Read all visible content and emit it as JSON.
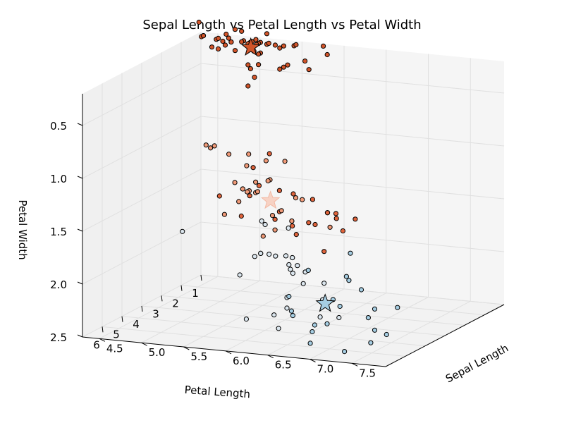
{
  "chart_data": {
    "type": "scatter-3d",
    "title": "Sepal Length  vs  Petal Length  vs  Petal Width",
    "axes": {
      "x": {
        "label": "Sepal Length",
        "ticks": [
          "4.5",
          "5.0",
          "5.5",
          "6.0",
          "6.5",
          "7.0",
          "7.5"
        ]
      },
      "y": {
        "label": "Petal Length",
        "ticks": [
          "6",
          "5",
          "4",
          "3",
          "2",
          "1"
        ]
      },
      "z": {
        "label": "Petal Width",
        "ticks": [
          "0.5",
          "1.0",
          "1.5",
          "2.0",
          "2.5"
        ]
      }
    },
    "colors": {
      "blue_cluster": "#a6cee3",
      "light_cluster": "#dbe6ee",
      "salmon_cluster": "#f09a78",
      "red_cluster": "#e0643c",
      "dark_cluster": "#d2552a",
      "marker_edge": "#000000",
      "pane": "#f2f2f2",
      "grid": "#e0e0e0"
    },
    "series": [
      {
        "name": "",
        "cluster": "dark_cluster",
        "points": [
          [
            5.1,
            1.4,
            0.2
          ],
          [
            4.9,
            1.4,
            0.2
          ],
          [
            4.7,
            1.3,
            0.2
          ],
          [
            4.6,
            1.5,
            0.2
          ],
          [
            5.0,
            1.4,
            0.2
          ],
          [
            5.4,
            1.7,
            0.4
          ],
          [
            4.6,
            1.4,
            0.3
          ],
          [
            5.0,
            1.5,
            0.2
          ],
          [
            4.4,
            1.4,
            0.2
          ],
          [
            4.9,
            1.5,
            0.1
          ],
          [
            5.4,
            1.5,
            0.2
          ],
          [
            4.8,
            1.6,
            0.2
          ],
          [
            4.8,
            1.4,
            0.1
          ],
          [
            4.3,
            1.1,
            0.1
          ],
          [
            5.8,
            1.2,
            0.2
          ],
          [
            5.7,
            1.5,
            0.4
          ],
          [
            5.4,
            1.3,
            0.4
          ],
          [
            5.1,
            1.4,
            0.3
          ],
          [
            5.7,
            1.7,
            0.3
          ],
          [
            5.1,
            1.5,
            0.3
          ],
          [
            5.4,
            1.7,
            0.2
          ],
          [
            5.1,
            1.5,
            0.4
          ],
          [
            4.6,
            1.0,
            0.2
          ],
          [
            5.1,
            1.7,
            0.5
          ],
          [
            4.8,
            1.9,
            0.2
          ],
          [
            5.0,
            1.6,
            0.2
          ],
          [
            5.0,
            1.6,
            0.4
          ],
          [
            5.2,
            1.5,
            0.2
          ],
          [
            5.2,
            1.4,
            0.2
          ],
          [
            4.7,
            1.6,
            0.2
          ],
          [
            4.8,
            1.6,
            0.2
          ],
          [
            5.4,
            1.5,
            0.4
          ],
          [
            5.2,
            1.5,
            0.1
          ],
          [
            5.5,
            1.4,
            0.2
          ],
          [
            4.9,
            1.5,
            0.2
          ],
          [
            5.0,
            1.2,
            0.2
          ],
          [
            5.5,
            1.3,
            0.2
          ],
          [
            4.4,
            1.3,
            0.2
          ],
          [
            5.1,
            1.5,
            0.2
          ],
          [
            5.0,
            1.3,
            0.3
          ],
          [
            4.5,
            1.3,
            0.3
          ],
          [
            4.4,
            1.3,
            0.2
          ],
          [
            5.0,
            1.6,
            0.6
          ],
          [
            5.1,
            1.9,
            0.4
          ],
          [
            4.8,
            1.4,
            0.3
          ],
          [
            5.1,
            1.6,
            0.2
          ],
          [
            4.6,
            1.4,
            0.2
          ],
          [
            5.3,
            1.5,
            0.2
          ],
          [
            5.0,
            1.4,
            0.2
          ],
          [
            5.8,
            1.0,
            0.3
          ]
        ]
      },
      {
        "name": "",
        "cluster": "red_cluster",
        "points": [
          [
            7.0,
            4.7,
            1.4
          ],
          [
            6.4,
            4.5,
            1.5
          ],
          [
            6.9,
            4.9,
            1.5
          ],
          [
            5.5,
            4.0,
            1.3
          ],
          [
            6.5,
            4.6,
            1.5
          ],
          [
            5.7,
            4.5,
            1.3
          ],
          [
            6.3,
            4.7,
            1.6
          ],
          [
            6.6,
            4.4,
            1.4
          ],
          [
            5.2,
            3.9,
            1.4
          ],
          [
            6.1,
            4.7,
            1.4
          ],
          [
            5.6,
            3.6,
            1.3
          ],
          [
            6.7,
            4.4,
            1.4
          ],
          [
            5.6,
            4.5,
            1.5
          ],
          [
            6.2,
            4.5,
            1.5
          ],
          [
            5.6,
            3.9,
            1.1
          ],
          [
            5.9,
            4.8,
            1.8
          ],
          [
            6.1,
            4.0,
            1.3
          ],
          [
            6.3,
            4.9,
            1.5
          ],
          [
            6.1,
            4.7,
            1.2
          ],
          [
            6.4,
            4.3,
            1.3
          ],
          [
            6.6,
            4.4,
            1.4
          ],
          [
            6.8,
            4.8,
            1.4
          ],
          [
            6.7,
            5.0,
            1.7
          ],
          [
            6.0,
            4.5,
            1.5
          ],
          [
            5.7,
            3.5,
            1.0
          ]
        ]
      },
      {
        "name": "",
        "cluster": "salmon_cluster",
        "points": [
          [
            4.9,
            3.3,
            1.0
          ],
          [
            5.0,
            3.5,
            1.0
          ],
          [
            5.9,
            4.2,
            1.5
          ],
          [
            6.0,
            4.0,
            1.0
          ],
          [
            5.8,
            4.1,
            1.0
          ],
          [
            6.2,
            4.5,
            1.5
          ],
          [
            5.6,
            4.2,
            1.3
          ],
          [
            5.5,
            3.8,
            1.1
          ],
          [
            5.5,
            3.7,
            1.0
          ],
          [
            5.8,
            3.9,
            1.2
          ],
          [
            6.0,
            5.1,
            1.6
          ],
          [
            5.4,
            4.5,
            1.5
          ],
          [
            6.0,
            4.5,
            1.6
          ],
          [
            6.7,
            4.7,
            1.5
          ],
          [
            6.3,
            4.4,
            1.3
          ],
          [
            5.6,
            4.1,
            1.3
          ],
          [
            5.5,
            4.0,
            1.3
          ],
          [
            5.5,
            4.4,
            1.2
          ],
          [
            6.1,
            4.6,
            1.4
          ],
          [
            5.8,
            4.0,
            1.2
          ],
          [
            5.0,
            3.3,
            1.0
          ],
          [
            5.6,
            4.2,
            1.3
          ],
          [
            5.7,
            4.2,
            1.2
          ],
          [
            5.7,
            4.2,
            1.3
          ],
          [
            6.2,
            4.3,
            1.3
          ],
          [
            5.1,
            3.0,
            1.1
          ],
          [
            5.7,
            4.1,
            1.3
          ],
          [
            5.5,
            4.2,
            1.4
          ]
        ]
      },
      {
        "name": "",
        "cluster": "light_cluster",
        "points": [
          [
            6.3,
            4.9,
            1.8
          ],
          [
            6.0,
            4.8,
            1.8
          ],
          [
            6.1,
            4.9,
            1.8
          ],
          [
            6.2,
            4.8,
            1.8
          ],
          [
            6.4,
            5.3,
            1.9
          ],
          [
            6.3,
            5.1,
            1.5
          ],
          [
            6.3,
            5.0,
            1.9
          ],
          [
            6.5,
            5.2,
            2.0
          ],
          [
            5.9,
            5.1,
            1.8
          ],
          [
            6.1,
            5.6,
            1.4
          ],
          [
            6.0,
            5.0,
            1.5
          ],
          [
            6.4,
            5.6,
            2.2
          ],
          [
            6.8,
            5.5,
            2.1
          ],
          [
            5.7,
            5.0,
            2.0
          ],
          [
            5.8,
            5.1,
            2.4
          ],
          [
            6.4,
            5.5,
            1.8
          ],
          [
            6.5,
            5.5,
            1.8
          ],
          [
            6.9,
            5.1,
            2.3
          ],
          [
            6.7,
            5.2,
            2.3
          ],
          [
            6.3,
            5.6,
            2.4
          ],
          [
            6.4,
            5.6,
            2.1
          ],
          [
            6.7,
            5.0,
            2.0
          ],
          [
            6.5,
            5.1,
            1.9
          ],
          [
            6.2,
            5.4,
            2.3
          ],
          [
            5.9,
            4.8,
            1.8
          ],
          [
            6.3,
            4.9,
            1.8
          ],
          [
            4.9,
            4.5,
            1.7
          ]
        ]
      },
      {
        "name": "",
        "cluster": "blue_cluster",
        "points": [
          [
            7.1,
            5.9,
            2.1
          ],
          [
            7.6,
            6.6,
            2.1
          ],
          [
            7.3,
            6.3,
            1.8
          ],
          [
            7.2,
            6.1,
            2.5
          ],
          [
            7.7,
            6.7,
            2.2
          ],
          [
            7.7,
            6.9,
            2.3
          ],
          [
            7.7,
            6.7,
            2.0
          ],
          [
            7.2,
            6.0,
            1.8
          ],
          [
            7.4,
            6.1,
            1.9
          ],
          [
            7.9,
            6.4,
            2.0
          ],
          [
            7.7,
            6.1,
            2.3
          ],
          [
            6.9,
            5.7,
            2.3
          ],
          [
            6.7,
            5.8,
            1.8
          ],
          [
            6.9,
            5.4,
            2.1
          ],
          [
            6.8,
            5.9,
            2.3
          ],
          [
            6.7,
            5.7,
            2.5
          ],
          [
            6.5,
            5.8,
            2.2
          ],
          [
            6.9,
            5.7,
            2.1
          ],
          [
            7.2,
            5.8,
            1.6
          ],
          [
            6.7,
            5.6,
            2.4
          ],
          [
            6.4,
            5.3,
            2.3
          ],
          [
            6.4,
            5.5,
            2.1
          ]
        ]
      }
    ],
    "centroids": [
      {
        "cluster": "dark_cluster",
        "point": [
          5.0,
          1.46,
          0.25
        ]
      },
      {
        "cluster": "salmon_cluster",
        "point": [
          5.9,
          4.3,
          1.35
        ]
      },
      {
        "cluster": "blue_cluster",
        "point": [
          6.9,
          5.8,
          2.1
        ]
      }
    ]
  }
}
